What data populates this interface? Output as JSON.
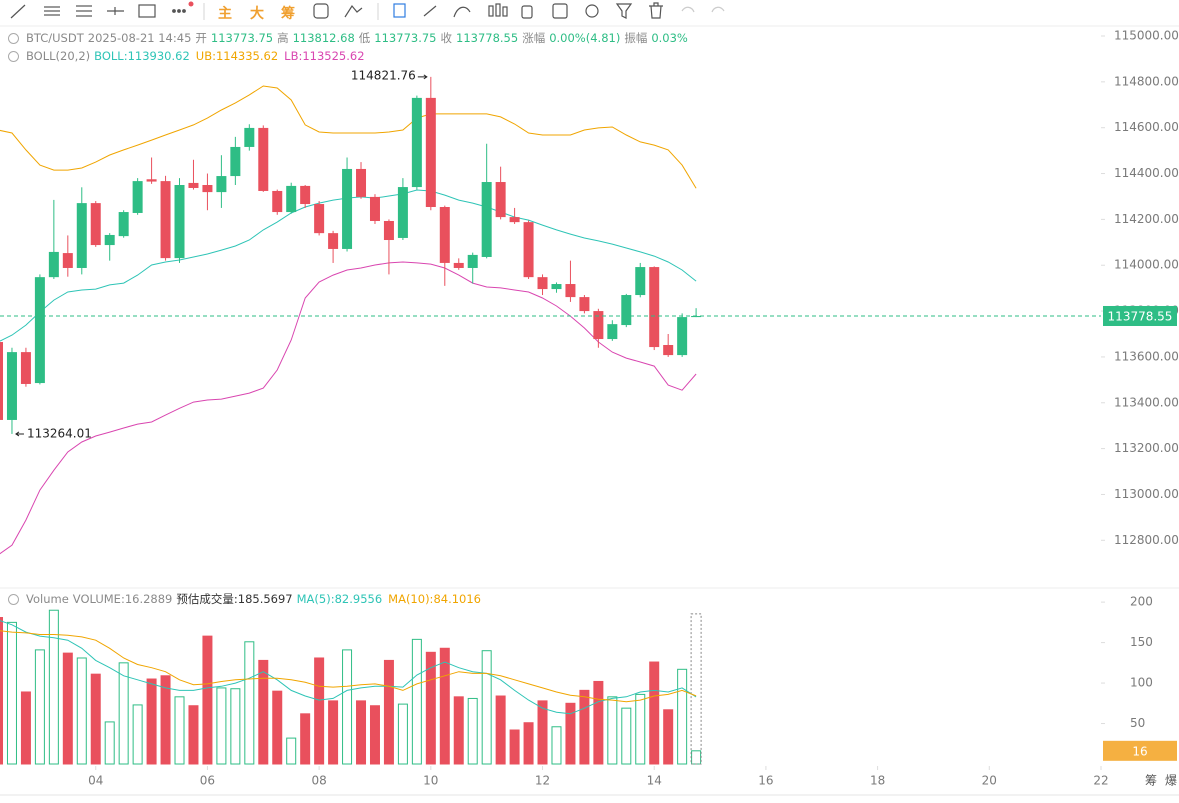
{
  "chart_data": {
    "type": "candlestick",
    "toolbar": [
      "主",
      "大",
      "筹"
    ],
    "symbol": "BTC/USDT",
    "datetime": "2025-08-21 14:45",
    "labels": {
      "open": "开",
      "high": "高",
      "low": "低",
      "close": "收",
      "change": "涨幅",
      "amplitude": "振幅"
    },
    "change": "0.00%(4.81)",
    "amplitude": "0.03%",
    "indicator": "BOLL(20,2)",
    "up_color": "#2ebd85",
    "down_color": "#e9505d",
    "x": [
      2.25,
      2.5,
      2.75,
      3,
      3.25,
      3.5,
      3.75,
      4,
      4.25,
      4.5,
      4.75,
      5,
      5.25,
      5.5,
      5.75,
      6,
      6.25,
      6.5,
      6.75,
      7,
      7.25,
      7.5,
      7.75,
      8,
      8.25,
      8.5,
      8.75,
      9,
      9.25,
      9.5,
      9.75,
      10,
      10.25,
      10.5,
      10.75,
      11,
      11.25,
      11.5,
      11.75,
      12,
      12.25,
      12.5,
      12.75,
      13,
      13.25,
      13.5,
      13.75,
      14,
      14.25,
      14.5,
      14.75
    ],
    "xlim": [
      2.2857,
      22
    ],
    "xticks": [
      {
        "value": 4,
        "label": "04"
      },
      {
        "value": 6,
        "label": "06"
      },
      {
        "value": 8,
        "label": "08"
      },
      {
        "value": 10,
        "label": "10"
      },
      {
        "value": 12,
        "label": "12"
      },
      {
        "value": 14,
        "label": "14"
      },
      16,
      18,
      20,
      22
    ],
    "open": [
      113665,
      113325,
      113621,
      113486,
      113948,
      114053,
      113988,
      114271,
      114088,
      114127,
      114228,
      114375,
      114367,
      114031,
      114359,
      114350,
      114319,
      114389,
      114516,
      114599,
      114324,
      114232,
      114346,
      114267,
      114140,
      114071,
      114420,
      114298,
      114193,
      114119,
      114341,
      114730,
      114254,
      114010,
      113988,
      114036,
      114363,
      114210,
      114188,
      113948,
      113896,
      113918,
      113861,
      113800,
      113678,
      113739,
      113870,
      113992,
      113652,
      113608,
      113773.75
    ],
    "high": [
      113680,
      113640,
      113640,
      113960,
      114285,
      114130,
      114340,
      114280,
      114140,
      114240,
      114380,
      114470,
      114390,
      114380,
      114460,
      114400,
      114480,
      114560,
      114615,
      114610,
      114330,
      114360,
      114350,
      114280,
      114150,
      114470,
      114450,
      114310,
      114200,
      114380,
      114740,
      114821.76,
      114260,
      114030,
      114055,
      114530,
      114430,
      114250,
      114195,
      113960,
      113925,
      114020,
      113870,
      113810,
      113760,
      113875,
      114010,
      113995,
      113700,
      113790,
      113812.68
    ],
    "low": [
      113300,
      113264.01,
      113470,
      113480,
      113940,
      113950,
      113960,
      114080,
      114020,
      114120,
      114220,
      114355,
      114020,
      114010,
      114330,
      114240,
      114250,
      114350,
      114500,
      114320,
      114220,
      114225,
      114250,
      114130,
      114010,
      114060,
      114290,
      114180,
      113960,
      114110,
      114330,
      114240,
      113910,
      113980,
      113920,
      114030,
      114200,
      114180,
      113940,
      113870,
      113880,
      113840,
      113790,
      113640,
      113670,
      113730,
      113860,
      113630,
      113600,
      113600,
      113773.75
    ],
    "close": [
      113325,
      113621,
      113482,
      113948,
      114058,
      113988,
      114271,
      114088,
      114132,
      114232,
      114367,
      114365,
      114031,
      114350,
      114337,
      114319,
      114389,
      114516,
      114599,
      114324,
      114232,
      114346,
      114267,
      114140,
      114071,
      114420,
      114298,
      114193,
      114110,
      114341,
      114730,
      114254,
      114010,
      113988,
      114045,
      114363,
      114210,
      114188,
      113948,
      113896,
      113918,
      113861,
      113800,
      113678,
      113743,
      113870,
      113992,
      113643,
      113608,
      113773.75,
      113778.55
    ],
    "series": [
      {
        "name": "BOLL:",
        "color": "#2ec4b6",
        "values": [
          113665,
          113695,
          113739,
          113796,
          113848,
          113883,
          113892,
          113896,
          113914,
          113922,
          113957,
          114001,
          114014,
          114023,
          114036,
          114049,
          114066,
          114084,
          114110,
          114154,
          114188,
          114228,
          114254,
          114271,
          114284,
          114293,
          114298,
          114293,
          114302,
          114311,
          114328,
          114324,
          114306,
          114284,
          114271,
          114254,
          114232,
          114210,
          114197,
          114175,
          114154,
          114136,
          114119,
          114106,
          114092,
          114075,
          114058,
          114040,
          114014,
          113979,
          113930.62
        ]
      },
      {
        "name": "UB:",
        "color": "#f0a500",
        "values": [
          114590,
          114577,
          114503,
          114437,
          114415,
          114415,
          114424,
          114450,
          114481,
          114503,
          114524,
          114546,
          114568,
          114590,
          114612,
          114642,
          114677,
          114708,
          114743,
          114782,
          114773,
          114721,
          114612,
          114581,
          114577,
          114577,
          114577,
          114577,
          114581,
          114590,
          114642,
          114660,
          114660,
          114660,
          114660,
          114660,
          114647,
          114616,
          114577,
          114568,
          114568,
          114568,
          114590,
          114599,
          114603,
          114568,
          114538,
          114524,
          114503,
          114437,
          114335.62
        ]
      },
      {
        "name": "LB:",
        "color": "#d946b0",
        "values": [
          112736,
          112779,
          112888,
          113019,
          113106,
          113185,
          113229,
          113255,
          113272,
          113290,
          113307,
          113316,
          113346,
          113376,
          113403,
          113412,
          113416,
          113429,
          113442,
          113464,
          113543,
          113674,
          113857,
          113927,
          113957,
          113979,
          113988,
          114001,
          114010,
          114014,
          114010,
          114005,
          113988,
          113957,
          113922,
          113905,
          113901,
          113892,
          113883,
          113857,
          113822,
          113778,
          113726,
          113665,
          113621,
          113595,
          113578,
          113560,
          113477,
          113455,
          113525.62
        ]
      }
    ],
    "ylim": [
      112605,
      115048
    ],
    "yticks": [
      {
        "value": 115000,
        "label": "115000.00"
      },
      {
        "value": 114800,
        "label": "114800.00"
      },
      {
        "value": 114600,
        "label": "114600.00"
      },
      {
        "value": 114400,
        "label": "114400.00"
      },
      {
        "value": 114200,
        "label": "114200.00"
      },
      {
        "value": 114000,
        "label": "114000.00"
      },
      {
        "value": 113800,
        "label": "113800.00"
      },
      {
        "value": 113600,
        "label": "113600.00"
      },
      {
        "value": 113400,
        "label": "113400.00"
      },
      {
        "value": 113200,
        "label": "113200.00"
      },
      {
        "value": 113000,
        "label": "113000.00"
      },
      {
        "value": 112800,
        "label": "112800.00"
      }
    ],
    "volume": {
      "title": "Volume",
      "label": "VOLUME:",
      "values": [
        181,
        175,
        89,
        141,
        190,
        137,
        131,
        111,
        52,
        125,
        73,
        105,
        109,
        83,
        72,
        158,
        94,
        93,
        151,
        128,
        90,
        32,
        62,
        131,
        78,
        141,
        78,
        72,
        128,
        74,
        154,
        138,
        143,
        83,
        81,
        140,
        84,
        42,
        51,
        78,
        46,
        75,
        91,
        102,
        83,
        69,
        86,
        126,
        67,
        117,
        16.2889
      ],
      "last_label": "16",
      "last_color": "#f5b041",
      "estimated_label": "预估成交量:",
      "estimated": 185.5697,
      "series": [
        {
          "name": "MA(5):",
          "color": "#2ec4b6",
          "values": [
            178,
            172,
            163,
            158,
            156,
            153,
            143,
            128,
            119,
            109,
            104,
            99,
            94,
            91,
            91,
            94,
            96,
            100,
            106,
            114,
            104,
            91,
            84,
            79,
            81,
            91,
            94,
            96,
            96,
            95,
            110,
            119,
            126,
            119,
            114,
            112,
            104,
            91,
            79,
            69,
            64,
            62,
            69,
            77,
            81,
            83,
            89,
            91,
            89,
            94,
            82.9556
          ]
        },
        {
          "name": "MA(10):",
          "color": "#f0a500",
          "values": [
            165,
            163,
            162,
            160,
            160,
            159,
            157,
            153,
            143,
            131,
            123,
            119,
            114,
            104,
            98,
            99,
            102,
            104,
            105,
            106,
            106,
            104,
            101,
            96,
            95,
            96,
            98,
            99,
            96,
            91,
            99,
            104,
            109,
            114,
            112,
            112,
            109,
            104,
            99,
            94,
            89,
            85,
            83,
            80,
            79,
            77,
            79,
            84,
            86,
            91,
            84.1016
          ]
        }
      ],
      "ylim": [
        0,
        215
      ],
      "yticks": [
        200,
        150,
        100,
        50
      ]
    },
    "footer": [
      "筹",
      "爆"
    ]
  }
}
